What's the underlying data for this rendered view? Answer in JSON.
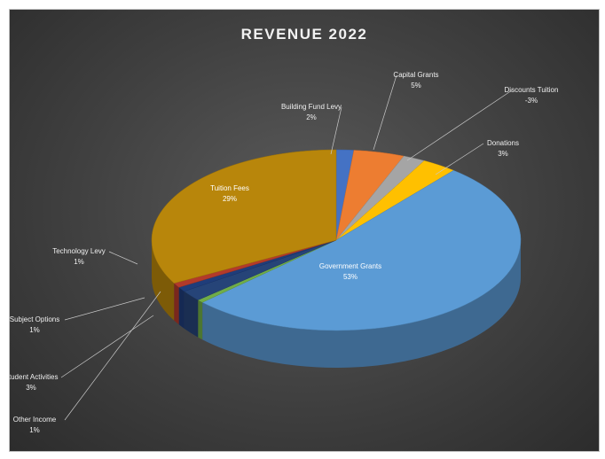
{
  "chart_data": {
    "type": "pie",
    "title": "REVENUE 2022",
    "slices": [
      {
        "label": "Government Grants",
        "value": 53,
        "value_label": "53%",
        "color": "#5b9bd5"
      },
      {
        "label": "Tuition Fees",
        "value": 29,
        "value_label": "29%",
        "color": "#b8860b"
      },
      {
        "label": "Technology Levy",
        "value": 1,
        "value_label": "1%",
        "color": "#b33a2a"
      },
      {
        "label": "Subject Options",
        "value": 1,
        "value_label": "1%",
        "color": "#1f3d7a"
      },
      {
        "label": "Student Activities",
        "value": 3,
        "value_label": "3%",
        "color": "#264478"
      },
      {
        "label": "Other Income",
        "value": 1,
        "value_label": "1%",
        "color": "#70ad47"
      },
      {
        "label": "Building Fund Levy",
        "value": 2,
        "value_label": "2%",
        "color": "#4472c4"
      },
      {
        "label": "Capital Grants",
        "value": 5,
        "value_label": "5%",
        "color": "#ed7d31"
      },
      {
        "label": "Discounts Tuition",
        "value": -3,
        "value_label": "-3%",
        "color": "#a5a5a5"
      },
      {
        "label": "Donations",
        "value": 3,
        "value_label": "3%",
        "color": "#ffc000"
      }
    ],
    "legend": "none",
    "style": "3d"
  }
}
